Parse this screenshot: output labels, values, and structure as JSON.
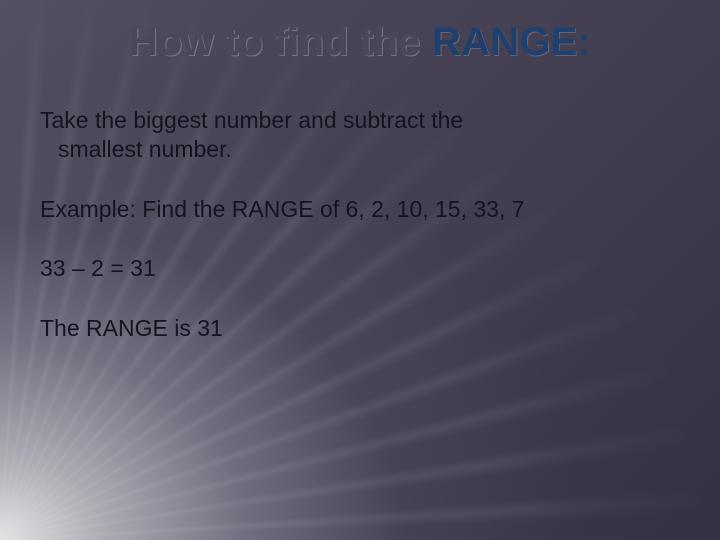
{
  "slide": {
    "background": {
      "gradient_start": "#555062",
      "gradient_end": "#353144",
      "ray_color": "rgba(255,255,255,0.08)",
      "glow_origin": "bottom-left"
    },
    "title": {
      "prefix": "How to find the ",
      "emphasis": "RANGE",
      "colon": ":",
      "prefix_color": "#4d4658",
      "emphasis_color": "#1f3f6e",
      "fontsize": 40,
      "fontweight": 700
    },
    "body": {
      "color": "#161320",
      "fontsize": 23,
      "instruction_line1": "Take the biggest number and subtract the",
      "instruction_line2": "smallest number.",
      "example_label": "Example: Find the RANGE of 6, 2, 10, 15, 33, 7",
      "calculation": "33 – 2 = 31",
      "result": "The RANGE is 31"
    }
  }
}
